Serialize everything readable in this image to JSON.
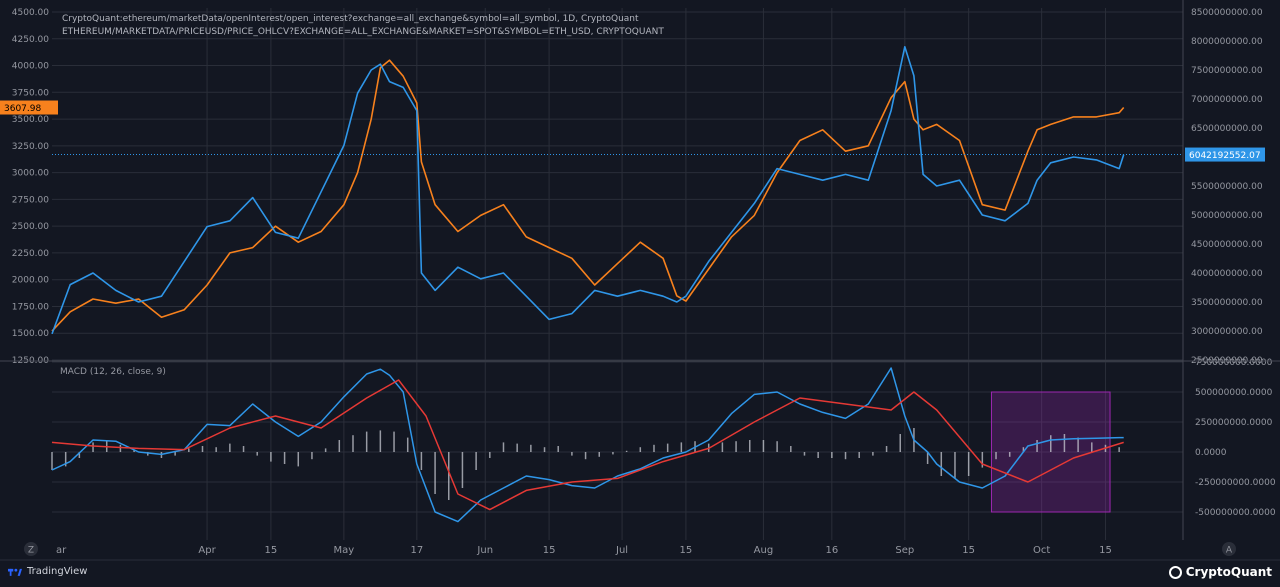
{
  "legend": {
    "line1": "CryptoQuant:ethereum/marketData/openInterest/open_interest?exchange=all_exchange&symbol=all_symbol, 1D, CryptoQuant",
    "line2": "ETHEREUM/MARKETDATA/PRICEUSD/PRICE_OHLCV?EXCHANGE=ALL_EXCHANGE&MARKET=SPOT&SYMBOL=ETH_USD, CRYPTOQUANT"
  },
  "macd_label": "MACD (12, 26, close, 9)",
  "badges": {
    "price_last": "3607.98",
    "oi_last": "6042192552.07"
  },
  "bottom_axis": {
    "left_button": "Z",
    "right_button": "A"
  },
  "footer": {
    "tradingview": "TradingView",
    "cryptoquant": "CryptoQuant"
  },
  "colors": {
    "background": "#131722",
    "grid": "#2a2e39",
    "price": "#f7811d",
    "open_interest": "#2f96e8",
    "macd": "#2f96e8",
    "signal": "#e53935",
    "histogram": "#d1d4dc",
    "highlight": "#9c27b0",
    "axis_text": "#9598a1"
  },
  "chart_data": [
    {
      "type": "line",
      "title": "",
      "x_ticks": [
        "Apr",
        "15",
        "May",
        "17",
        "Jun",
        "15",
        "Jul",
        "15",
        "Aug",
        "16",
        "Sep",
        "15",
        "Oct",
        "15"
      ],
      "x_tick_positions_day": [
        0,
        14,
        30,
        46,
        61,
        75,
        91,
        105,
        122,
        137,
        153,
        167,
        183,
        197
      ],
      "x_range_day": [
        -34,
        214
      ],
      "left_axis": {
        "ylim": [
          1250,
          4500
        ],
        "ticks": [
          "1250.00",
          "1500.00",
          "1750.00",
          "2000.00",
          "2250.00",
          "2500.00",
          "2750.00",
          "3000.00",
          "3250.00",
          "3500.00",
          "3750.00",
          "4000.00",
          "4250.00",
          "4500.00"
        ]
      },
      "right_axis": {
        "ylim": [
          2500000000,
          8500000000
        ],
        "ticks": [
          "2500000000.00",
          "3000000000.00",
          "3500000000.00",
          "4000000000.00",
          "4500000000.00",
          "5000000000.00",
          "5500000000.00",
          "6000000000.00",
          "6500000000.00",
          "7000000000.00",
          "7500000000.00",
          "8000000000.00",
          "8500000000.00"
        ]
      },
      "series": [
        {
          "name": "",
          "axis": "left",
          "x": [
            -34,
            -30,
            -25,
            -20,
            -15,
            -10,
            -5,
            0,
            5,
            10,
            15,
            20,
            25,
            30,
            33,
            36,
            38,
            40,
            43,
            46,
            47,
            50,
            55,
            60,
            65,
            70,
            75,
            80,
            85,
            90,
            95,
            100,
            103,
            105,
            110,
            115,
            120,
            125,
            130,
            135,
            140,
            145,
            150,
            153,
            155,
            157,
            160,
            165,
            170,
            175,
            180,
            182,
            185,
            190,
            195,
            200,
            201
          ],
          "values": [
            1520,
            1700,
            1820,
            1780,
            1820,
            1650,
            1720,
            1950,
            2250,
            2300,
            2500,
            2350,
            2450,
            2700,
            3000,
            3500,
            3980,
            4050,
            3900,
            3650,
            3100,
            2700,
            2450,
            2600,
            2700,
            2400,
            2300,
            2200,
            1950,
            2150,
            2350,
            2200,
            1850,
            1800,
            2100,
            2400,
            2600,
            3000,
            3300,
            3400,
            3200,
            3250,
            3700,
            3850,
            3500,
            3400,
            3450,
            3300,
            2700,
            2650,
            3200,
            3400,
            3450,
            3520,
            3520,
            3560,
            3608
          ]
        },
        {
          "name": "",
          "axis": "right",
          "x": [
            -34,
            -30,
            -25,
            -20,
            -15,
            -10,
            -5,
            0,
            5,
            10,
            15,
            20,
            25,
            30,
            33,
            36,
            38,
            40,
            43,
            46,
            47,
            50,
            55,
            60,
            65,
            70,
            75,
            80,
            85,
            90,
            95,
            100,
            103,
            105,
            110,
            115,
            120,
            125,
            130,
            135,
            140,
            145,
            150,
            153,
            155,
            157,
            160,
            165,
            170,
            175,
            180,
            182,
            185,
            190,
            195,
            200,
            201
          ],
          "values": [
            2950000000,
            3800000000,
            4000000000,
            3700000000,
            3500000000,
            3600000000,
            4200000000,
            4800000000,
            4900000000,
            5300000000,
            4700000000,
            4600000000,
            5400000000,
            6200000000,
            7100000000,
            7500000000,
            7600000000,
            7300000000,
            7200000000,
            6800000000,
            4000000000,
            3700000000,
            4100000000,
            3900000000,
            4000000000,
            3600000000,
            3200000000,
            3300000000,
            3700000000,
            3600000000,
            3700000000,
            3600000000,
            3500000000,
            3600000000,
            4200000000,
            4700000000,
            5200000000,
            5800000000,
            5700000000,
            5600000000,
            5700000000,
            5600000000,
            6800000000,
            7900000000,
            7400000000,
            5700000000,
            5500000000,
            5600000000,
            5000000000,
            4900000000,
            5200000000,
            5600000000,
            5900000000,
            6000000000,
            5950000000,
            5800000000,
            6042192552
          ]
        }
      ]
    },
    {
      "type": "line",
      "title": "MACD (12, 26, close, 9)",
      "x_range_day": [
        -34,
        214
      ],
      "ylim": [
        -500000000,
        750000000
      ],
      "y_ticks": [
        "750000000.0000",
        "500000000.0000",
        "250000000.0000",
        "0.0000",
        "-250000000.0000",
        "-500000000.0000"
      ],
      "series": [
        {
          "name": "",
          "x": [
            -34,
            -30,
            -25,
            -20,
            -15,
            -10,
            -5,
            0,
            5,
            10,
            15,
            20,
            25,
            30,
            35,
            38,
            40,
            43,
            46,
            50,
            55,
            60,
            65,
            70,
            75,
            80,
            85,
            90,
            95,
            100,
            105,
            110,
            115,
            120,
            125,
            130,
            135,
            140,
            145,
            150,
            153,
            155,
            158,
            160,
            165,
            170,
            175,
            180,
            185,
            190,
            195,
            200,
            201
          ],
          "values": [
            -150000000,
            -80000000,
            100000000,
            90000000,
            0,
            -20000000,
            20000000,
            230000000,
            220000000,
            400000000,
            250000000,
            130000000,
            250000000,
            460000000,
            650000000,
            690000000,
            640000000,
            500000000,
            -100000000,
            -500000000,
            -580000000,
            -400000000,
            -300000000,
            -200000000,
            -230000000,
            -280000000,
            -300000000,
            -200000000,
            -140000000,
            -50000000,
            0,
            100000000,
            320000000,
            480000000,
            500000000,
            400000000,
            330000000,
            280000000,
            400000000,
            700000000,
            300000000,
            100000000,
            0,
            -100000000,
            -250000000,
            -300000000,
            -200000000,
            50000000,
            100000000,
            110000000,
            115000000,
            120000000,
            120000000
          ]
        },
        {
          "name": "",
          "x": [
            -34,
            -25,
            -15,
            -5,
            5,
            15,
            25,
            35,
            42,
            48,
            55,
            62,
            70,
            80,
            90,
            100,
            110,
            120,
            130,
            140,
            150,
            155,
            160,
            170,
            180,
            190,
            201
          ],
          "values": [
            80000000,
            50000000,
            30000000,
            20000000,
            200000000,
            300000000,
            200000000,
            450000000,
            600000000,
            300000000,
            -350000000,
            -480000000,
            -320000000,
            -250000000,
            -220000000,
            -80000000,
            30000000,
            250000000,
            450000000,
            400000000,
            350000000,
            500000000,
            350000000,
            -100000000,
            -250000000,
            -50000000,
            80000000
          ]
        },
        {
          "name": "",
          "type": "histogram",
          "x": [
            -34,
            -31,
            -28,
            -25,
            -22,
            -19,
            -16,
            -13,
            -10,
            -7,
            -4,
            -1,
            2,
            5,
            8,
            11,
            14,
            17,
            20,
            23,
            26,
            29,
            32,
            35,
            38,
            41,
            44,
            47,
            50,
            53,
            56,
            59,
            62,
            65,
            68,
            71,
            74,
            77,
            80,
            83,
            86,
            89,
            92,
            95,
            98,
            101,
            104,
            107,
            110,
            113,
            116,
            119,
            122,
            125,
            128,
            131,
            134,
            137,
            140,
            143,
            146,
            149,
            152,
            155,
            158,
            161,
            164,
            167,
            170,
            173,
            176,
            179,
            182,
            185,
            188,
            191,
            194,
            197,
            200
          ],
          "values": [
            -150000000,
            -120000000,
            -50000000,
            80000000,
            90000000,
            60000000,
            20000000,
            -30000000,
            -50000000,
            -30000000,
            30000000,
            50000000,
            40000000,
            70000000,
            50000000,
            -30000000,
            -80000000,
            -100000000,
            -120000000,
            -60000000,
            30000000,
            100000000,
            140000000,
            170000000,
            180000000,
            170000000,
            120000000,
            -150000000,
            -350000000,
            -400000000,
            -300000000,
            -150000000,
            -50000000,
            80000000,
            70000000,
            60000000,
            40000000,
            50000000,
            -30000000,
            -60000000,
            -40000000,
            -20000000,
            10000000,
            40000000,
            60000000,
            70000000,
            80000000,
            90000000,
            70000000,
            80000000,
            90000000,
            100000000,
            100000000,
            90000000,
            50000000,
            -30000000,
            -50000000,
            -50000000,
            -60000000,
            -50000000,
            -30000000,
            50000000,
            150000000,
            200000000,
            -100000000,
            -200000000,
            -220000000,
            -200000000,
            -130000000,
            -60000000,
            -40000000,
            40000000,
            100000000,
            140000000,
            150000000,
            120000000,
            80000000,
            60000000,
            40000000
          ]
        }
      ],
      "highlight_box_x_day": [
        172,
        198
      ]
    }
  ]
}
